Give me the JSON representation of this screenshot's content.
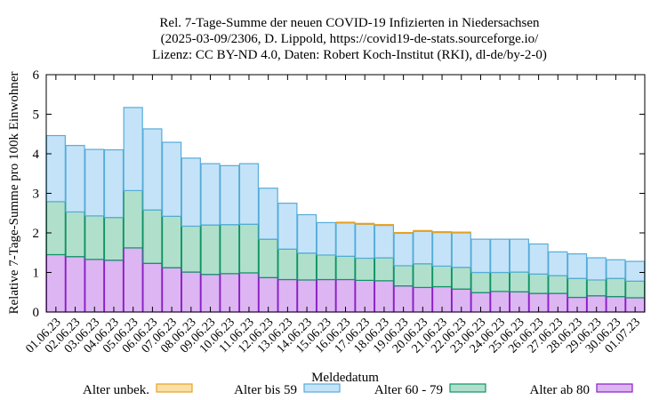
{
  "chart_data": {
    "type": "bar",
    "stacked": true,
    "title_lines": [
      "Rel. 7-Tage-Summe der neuen COVID-19 Infizierten in Niedersachsen",
      "(2025-03-09/2306, D. Lippold, https://covid19-de-stats.sourceforge.io/",
      "Lizenz: CC BY-ND 4.0, Daten: Robert Koch-Institut (RKI), dl-de/by-2-0)"
    ],
    "xlabel": "Meldedatum",
    "ylabel": "Relative 7-Tage-Summe pro 100k Einwohner",
    "ylim": [
      0,
      6
    ],
    "yticks": [
      "0",
      "1",
      "2",
      "3",
      "4",
      "5",
      "6"
    ],
    "grid": false,
    "legend_position": "bottom",
    "categories": [
      "01.06.23",
      "02.06.23",
      "03.06.23",
      "04.06.23",
      "05.06.23",
      "06.06.23",
      "07.06.23",
      "08.06.23",
      "09.06.23",
      "10.06.23",
      "11.06.23",
      "12.06.23",
      "13.06.23",
      "14.06.23",
      "15.06.23",
      "16.06.23",
      "17.06.23",
      "18.06.23",
      "19.06.23",
      "20.06.23",
      "21.06.23",
      "22.06.23",
      "23.06.23",
      "24.06.23",
      "25.06.23",
      "26.06.23",
      "27.06.23",
      "28.06.23",
      "29.06.23",
      "30.06.23",
      "01.07.23"
    ],
    "series": [
      {
        "name": "Alter ab 80",
        "fill": "#dcb5f2",
        "stroke": "#8a1ec4",
        "values": [
          1.45,
          1.4,
          1.33,
          1.31,
          1.62,
          1.23,
          1.12,
          1.01,
          0.95,
          0.97,
          0.99,
          0.87,
          0.82,
          0.81,
          0.82,
          0.82,
          0.8,
          0.79,
          0.66,
          0.62,
          0.64,
          0.58,
          0.49,
          0.52,
          0.51,
          0.47,
          0.47,
          0.37,
          0.41,
          0.39,
          0.36
        ]
      },
      {
        "name": "Alter 60 - 79",
        "fill": "#b0e0cc",
        "stroke": "#0f9366",
        "values": [
          1.34,
          1.13,
          1.1,
          1.08,
          1.45,
          1.35,
          1.3,
          1.16,
          1.25,
          1.24,
          1.23,
          0.97,
          0.77,
          0.68,
          0.62,
          0.59,
          0.56,
          0.58,
          0.51,
          0.6,
          0.52,
          0.55,
          0.51,
          0.48,
          0.5,
          0.49,
          0.45,
          0.48,
          0.4,
          0.46,
          0.42
        ]
      },
      {
        "name": "Alter bis 59",
        "fill": "#c5e3f8",
        "stroke": "#55acd9",
        "values": [
          1.67,
          1.68,
          1.68,
          1.71,
          2.1,
          2.05,
          1.87,
          1.72,
          1.55,
          1.49,
          1.53,
          1.29,
          1.16,
          0.97,
          0.82,
          0.84,
          0.86,
          0.82,
          0.82,
          0.82,
          0.85,
          0.87,
          0.84,
          0.84,
          0.83,
          0.76,
          0.6,
          0.62,
          0.56,
          0.47,
          0.5
        ]
      },
      {
        "name": "Alter unbek.",
        "fill": "#fbe0a6",
        "stroke": "#e5a226",
        "values": [
          0,
          0,
          0,
          0,
          0,
          0,
          0,
          0,
          0,
          0,
          0,
          0,
          0,
          0,
          0,
          0.02,
          0.02,
          0.02,
          0.02,
          0.02,
          0.02,
          0.02,
          0,
          0,
          0,
          0,
          0,
          0,
          0,
          0,
          0
        ]
      }
    ],
    "legend_order": [
      "Alter unbek.",
      "Alter bis 59",
      "Alter 60 - 79",
      "Alter ab 80"
    ]
  }
}
